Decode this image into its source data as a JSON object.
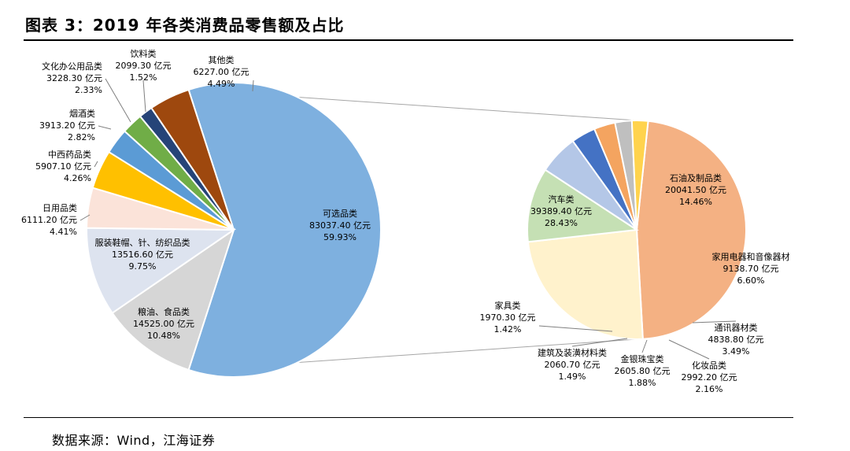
{
  "title": "图表 3：2019 年各类消费品零售额及占比",
  "source": "数据来源：Wind，江海证券",
  "chart_data": [
    {
      "type": "pie",
      "name": "main",
      "slices": [
        {
          "label": "可选品类",
          "value": 83037.4,
          "value_text": "83037.40 亿元",
          "pct_text": "59.93%",
          "color": "#7eb0df"
        },
        {
          "label": "粮油、食品类",
          "value": 14525.0,
          "value_text": "14525.00 亿元",
          "pct_text": "10.48%",
          "color": "#d6d6d6"
        },
        {
          "label": "服装鞋帽、针、纺织品类",
          "value": 13516.6,
          "value_text": "13516.60 亿元",
          "pct_text": "9.75%",
          "color": "#dde3ef"
        },
        {
          "label": "日用品类",
          "value": 6111.2,
          "value_text": "6111.20 亿元",
          "pct_text": "4.41%",
          "color": "#fbe3d9"
        },
        {
          "label": "中西药品类",
          "value": 5907.1,
          "value_text": "5907.10 亿元",
          "pct_text": "4.26%",
          "color": "#ffc000"
        },
        {
          "label": "烟酒类",
          "value": 3913.2,
          "value_text": "3913.20 亿元",
          "pct_text": "2.82%",
          "color": "#5b9bd5"
        },
        {
          "label": "文化办公用品类",
          "value": 3228.3,
          "value_text": "3228.30 亿元",
          "pct_text": "2.33%",
          "color": "#70ad47"
        },
        {
          "label": "饮料类",
          "value": 2099.3,
          "value_text": "2099.30 亿元",
          "pct_text": "1.52%",
          "color": "#264478"
        },
        {
          "label": "其他类",
          "value": 6227.0,
          "value_text": "6227.00 亿元",
          "pct_text": "4.49%",
          "color": "#9e480e"
        }
      ]
    },
    {
      "type": "pie",
      "name": "breakdown-of-可选品类",
      "slices": [
        {
          "label": "汽车类",
          "value": 39389.4,
          "value_text": "39389.40 亿元",
          "pct_text": "28.43%",
          "color": "#f4b183"
        },
        {
          "label": "石油及制品类",
          "value": 20041.5,
          "value_text": "20041.50 亿元",
          "pct_text": "14.46%",
          "color": "#fff2cc"
        },
        {
          "label": "家用电器和音像器材",
          "value": 9138.7,
          "value_text": "9138.70 亿元",
          "pct_text": "6.60%",
          "color": "#c5e0b4"
        },
        {
          "label": "通讯器材类",
          "value": 4838.8,
          "value_text": "4838.80 亿元",
          "pct_text": "3.49%",
          "color": "#b4c7e7"
        },
        {
          "label": "化妆品类",
          "value": 2992.2,
          "value_text": "2992.20 亿元",
          "pct_text": "2.16%",
          "color": "#4472c4"
        },
        {
          "label": "金银珠宝类",
          "value": 2605.8,
          "value_text": "2605.80 亿元",
          "pct_text": "1.88%",
          "color": "#f4a460"
        },
        {
          "label": "建筑及装潢材料类",
          "value": 2060.7,
          "value_text": "2060.70 亿元",
          "pct_text": "1.49%",
          "color": "#bfbfbf"
        },
        {
          "label": "家具类",
          "value": 1970.3,
          "value_text": "1970.30 亿元",
          "pct_text": "1.42%",
          "color": "#ffd34d"
        }
      ]
    }
  ]
}
